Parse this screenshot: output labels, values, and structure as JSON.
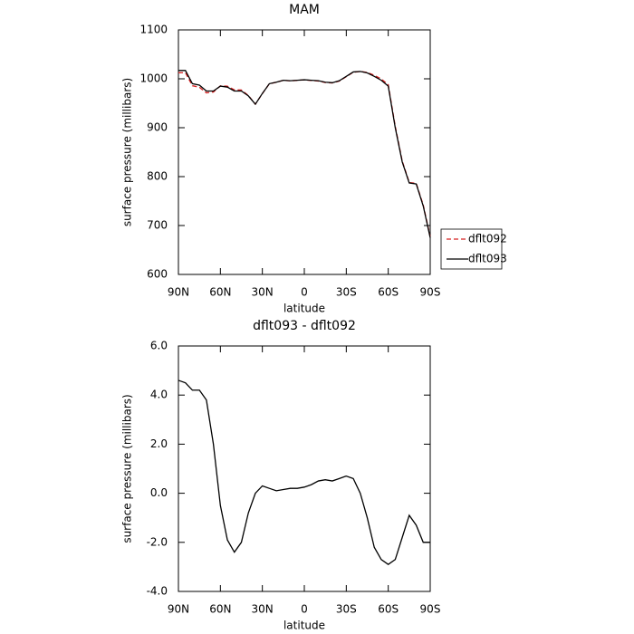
{
  "chart_data": [
    {
      "type": "line",
      "title": "MAM",
      "xlabel": "latitude",
      "ylabel": "surface pressure (millibars)",
      "x": [
        90,
        85,
        80,
        75,
        70,
        65,
        60,
        55,
        50,
        45,
        40,
        35,
        30,
        25,
        20,
        15,
        10,
        5,
        0,
        -5,
        -10,
        -15,
        -20,
        -25,
        -30,
        -35,
        -40,
        -45,
        -50,
        -55,
        -60,
        -65,
        -70,
        -75,
        -80,
        -85,
        -90
      ],
      "series": [
        {
          "name": "dflt092",
          "color": "#d62020",
          "dash": true,
          "values": [
            1012.4,
            1012.5,
            985.8,
            982.8,
            971.2,
            973,
            985.5,
            984.9,
            977.4,
            977,
            965.8,
            948,
            969.7,
            989.8,
            992.9,
            996.85,
            995.8,
            996.8,
            997.75,
            996.65,
            995.5,
            992.45,
            991.5,
            995.4,
            1004.3,
            1013.4,
            1015,
            1013,
            1007.2,
            999.7,
            987.9,
            902.7,
            831.8,
            787.9,
            786.3,
            742,
            677
          ]
        },
        {
          "name": "dflt093",
          "color": "#000000",
          "dash": false,
          "values": [
            1017,
            1017,
            990,
            987,
            975,
            975,
            985,
            983,
            975,
            975,
            965,
            948,
            970,
            990,
            993,
            997,
            996,
            997,
            998,
            997,
            996,
            993,
            992,
            996,
            1005,
            1014,
            1015,
            1012,
            1005,
            997,
            985,
            900,
            830,
            787,
            785,
            740,
            675
          ]
        }
      ],
      "xlim": [
        90,
        -90
      ],
      "xticks": [
        {
          "value": 90,
          "label": "90N"
        },
        {
          "value": 60,
          "label": "60N"
        },
        {
          "value": 30,
          "label": "30N"
        },
        0,
        {
          "value": -30,
          "label": "30S"
        },
        {
          "value": -60,
          "label": "60S"
        },
        {
          "value": -90,
          "label": "90S"
        }
      ],
      "ylim": [
        600,
        1100
      ],
      "yticks": [
        600,
        700,
        800,
        900,
        1000,
        1100
      ],
      "legend": "outside-right"
    },
    {
      "type": "line",
      "title": "dflt093 - dflt092",
      "xlabel": "latitude",
      "ylabel": "surface pressure (millibars)",
      "x": [
        90,
        85,
        80,
        75,
        70,
        65,
        60,
        55,
        50,
        45,
        40,
        35,
        30,
        25,
        20,
        15,
        10,
        5,
        0,
        -5,
        -10,
        -15,
        -20,
        -25,
        -30,
        -35,
        -40,
        -45,
        -50,
        -55,
        -60,
        -65,
        -70,
        -75,
        -80,
        -85,
        -90
      ],
      "series": [
        {
          "color": "#000000",
          "dash": false,
          "values": [
            4.6,
            4.5,
            4.2,
            4.2,
            3.8,
            2.0,
            -0.5,
            -1.9,
            -2.4,
            -2.0,
            -0.8,
            0.0,
            0.3,
            0.2,
            0.1,
            0.15,
            0.2,
            0.2,
            0.25,
            0.35,
            0.5,
            0.55,
            0.5,
            0.6,
            0.7,
            0.6,
            0.0,
            -1.0,
            -2.2,
            -2.7,
            -2.9,
            -2.7,
            -1.8,
            -0.9,
            -1.3,
            -2.0,
            -2.0
          ]
        }
      ],
      "xlim": [
        90,
        -90
      ],
      "xticks": [
        {
          "value": 90,
          "label": "90N"
        },
        {
          "value": 60,
          "label": "60N"
        },
        {
          "value": 30,
          "label": "30N"
        },
        0,
        {
          "value": -30,
          "label": "30S"
        },
        {
          "value": -60,
          "label": "60S"
        },
        {
          "value": -90,
          "label": "90S"
        }
      ],
      "ylim": [
        -4,
        6
      ],
      "yticks": [
        {
          "value": -4,
          "label": "-4.0"
        },
        {
          "value": -2,
          "label": "-2.0"
        },
        {
          "value": 0,
          "label": "0.0"
        },
        {
          "value": 2,
          "label": "2.0"
        },
        {
          "value": 4,
          "label": "4.0"
        },
        {
          "value": 6,
          "label": "6.0"
        }
      ]
    }
  ]
}
